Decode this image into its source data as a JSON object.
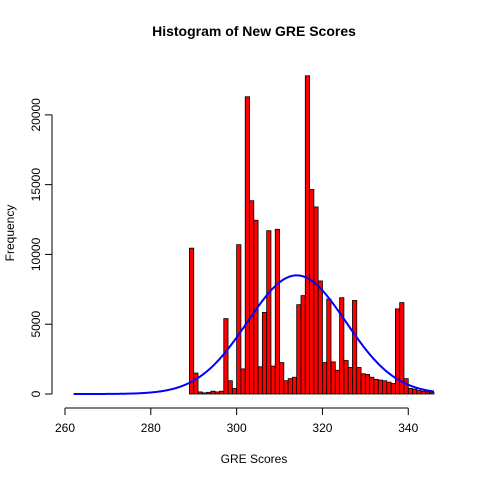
{
  "chart_data": {
    "type": "bar",
    "title": "Histogram of New GRE Scores",
    "xlabel": "GRE Scores",
    "ylabel": "Frequency",
    "xlim": [
      260,
      346
    ],
    "ylim": [
      0,
      23000
    ],
    "x_ticks": [
      "260",
      "280",
      "300",
      "320",
      "340"
    ],
    "y_ticks": [
      "0",
      "5000",
      "10000",
      "15000",
      "20000"
    ],
    "bin_width": 1,
    "bins": [
      {
        "x0": 289,
        "y": 10450
      },
      {
        "x0": 290,
        "y": 1500
      },
      {
        "x0": 291,
        "y": 150
      },
      {
        "x0": 292,
        "y": 80
      },
      {
        "x0": 293,
        "y": 120
      },
      {
        "x0": 294,
        "y": 200
      },
      {
        "x0": 295,
        "y": 150
      },
      {
        "x0": 296,
        "y": 200
      },
      {
        "x0": 297,
        "y": 5400
      },
      {
        "x0": 298,
        "y": 950
      },
      {
        "x0": 299,
        "y": 400
      },
      {
        "x0": 300,
        "y": 10700
      },
      {
        "x0": 301,
        "y": 1800
      },
      {
        "x0": 302,
        "y": 21300
      },
      {
        "x0": 303,
        "y": 13850
      },
      {
        "x0": 304,
        "y": 12450
      },
      {
        "x0": 305,
        "y": 1950
      },
      {
        "x0": 306,
        "y": 5850
      },
      {
        "x0": 307,
        "y": 11700
      },
      {
        "x0": 308,
        "y": 2000
      },
      {
        "x0": 309,
        "y": 11800
      },
      {
        "x0": 310,
        "y": 2250
      },
      {
        "x0": 311,
        "y": 950
      },
      {
        "x0": 312,
        "y": 1100
      },
      {
        "x0": 313,
        "y": 1200
      },
      {
        "x0": 314,
        "y": 6400
      },
      {
        "x0": 315,
        "y": 7050
      },
      {
        "x0": 316,
        "y": 22800
      },
      {
        "x0": 317,
        "y": 14650
      },
      {
        "x0": 318,
        "y": 13400
      },
      {
        "x0": 319,
        "y": 8100
      },
      {
        "x0": 320,
        "y": 2250
      },
      {
        "x0": 321,
        "y": 6800
      },
      {
        "x0": 322,
        "y": 2300
      },
      {
        "x0": 323,
        "y": 1700
      },
      {
        "x0": 324,
        "y": 6900
      },
      {
        "x0": 325,
        "y": 2400
      },
      {
        "x0": 326,
        "y": 1900
      },
      {
        "x0": 327,
        "y": 6700
      },
      {
        "x0": 328,
        "y": 1900
      },
      {
        "x0": 329,
        "y": 1450
      },
      {
        "x0": 330,
        "y": 1400
      },
      {
        "x0": 331,
        "y": 1200
      },
      {
        "x0": 332,
        "y": 1050
      },
      {
        "x0": 333,
        "y": 1000
      },
      {
        "x0": 334,
        "y": 950
      },
      {
        "x0": 335,
        "y": 850
      },
      {
        "x0": 336,
        "y": 750
      },
      {
        "x0": 337,
        "y": 6100
      },
      {
        "x0": 338,
        "y": 6550
      },
      {
        "x0": 339,
        "y": 1100
      },
      {
        "x0": 340,
        "y": 400
      },
      {
        "x0": 341,
        "y": 350
      },
      {
        "x0": 342,
        "y": 250
      },
      {
        "x0": 343,
        "y": 200
      },
      {
        "x0": 344,
        "y": 150
      },
      {
        "x0": 345,
        "y": 100
      }
    ],
    "bar_color": "#ff0000",
    "bar_border": "#000000",
    "curve": {
      "type": "normal_density",
      "mean": 314,
      "sd": 11.5,
      "peak": 8500,
      "x_range": [
        262,
        346
      ],
      "color": "#0000ff"
    }
  }
}
